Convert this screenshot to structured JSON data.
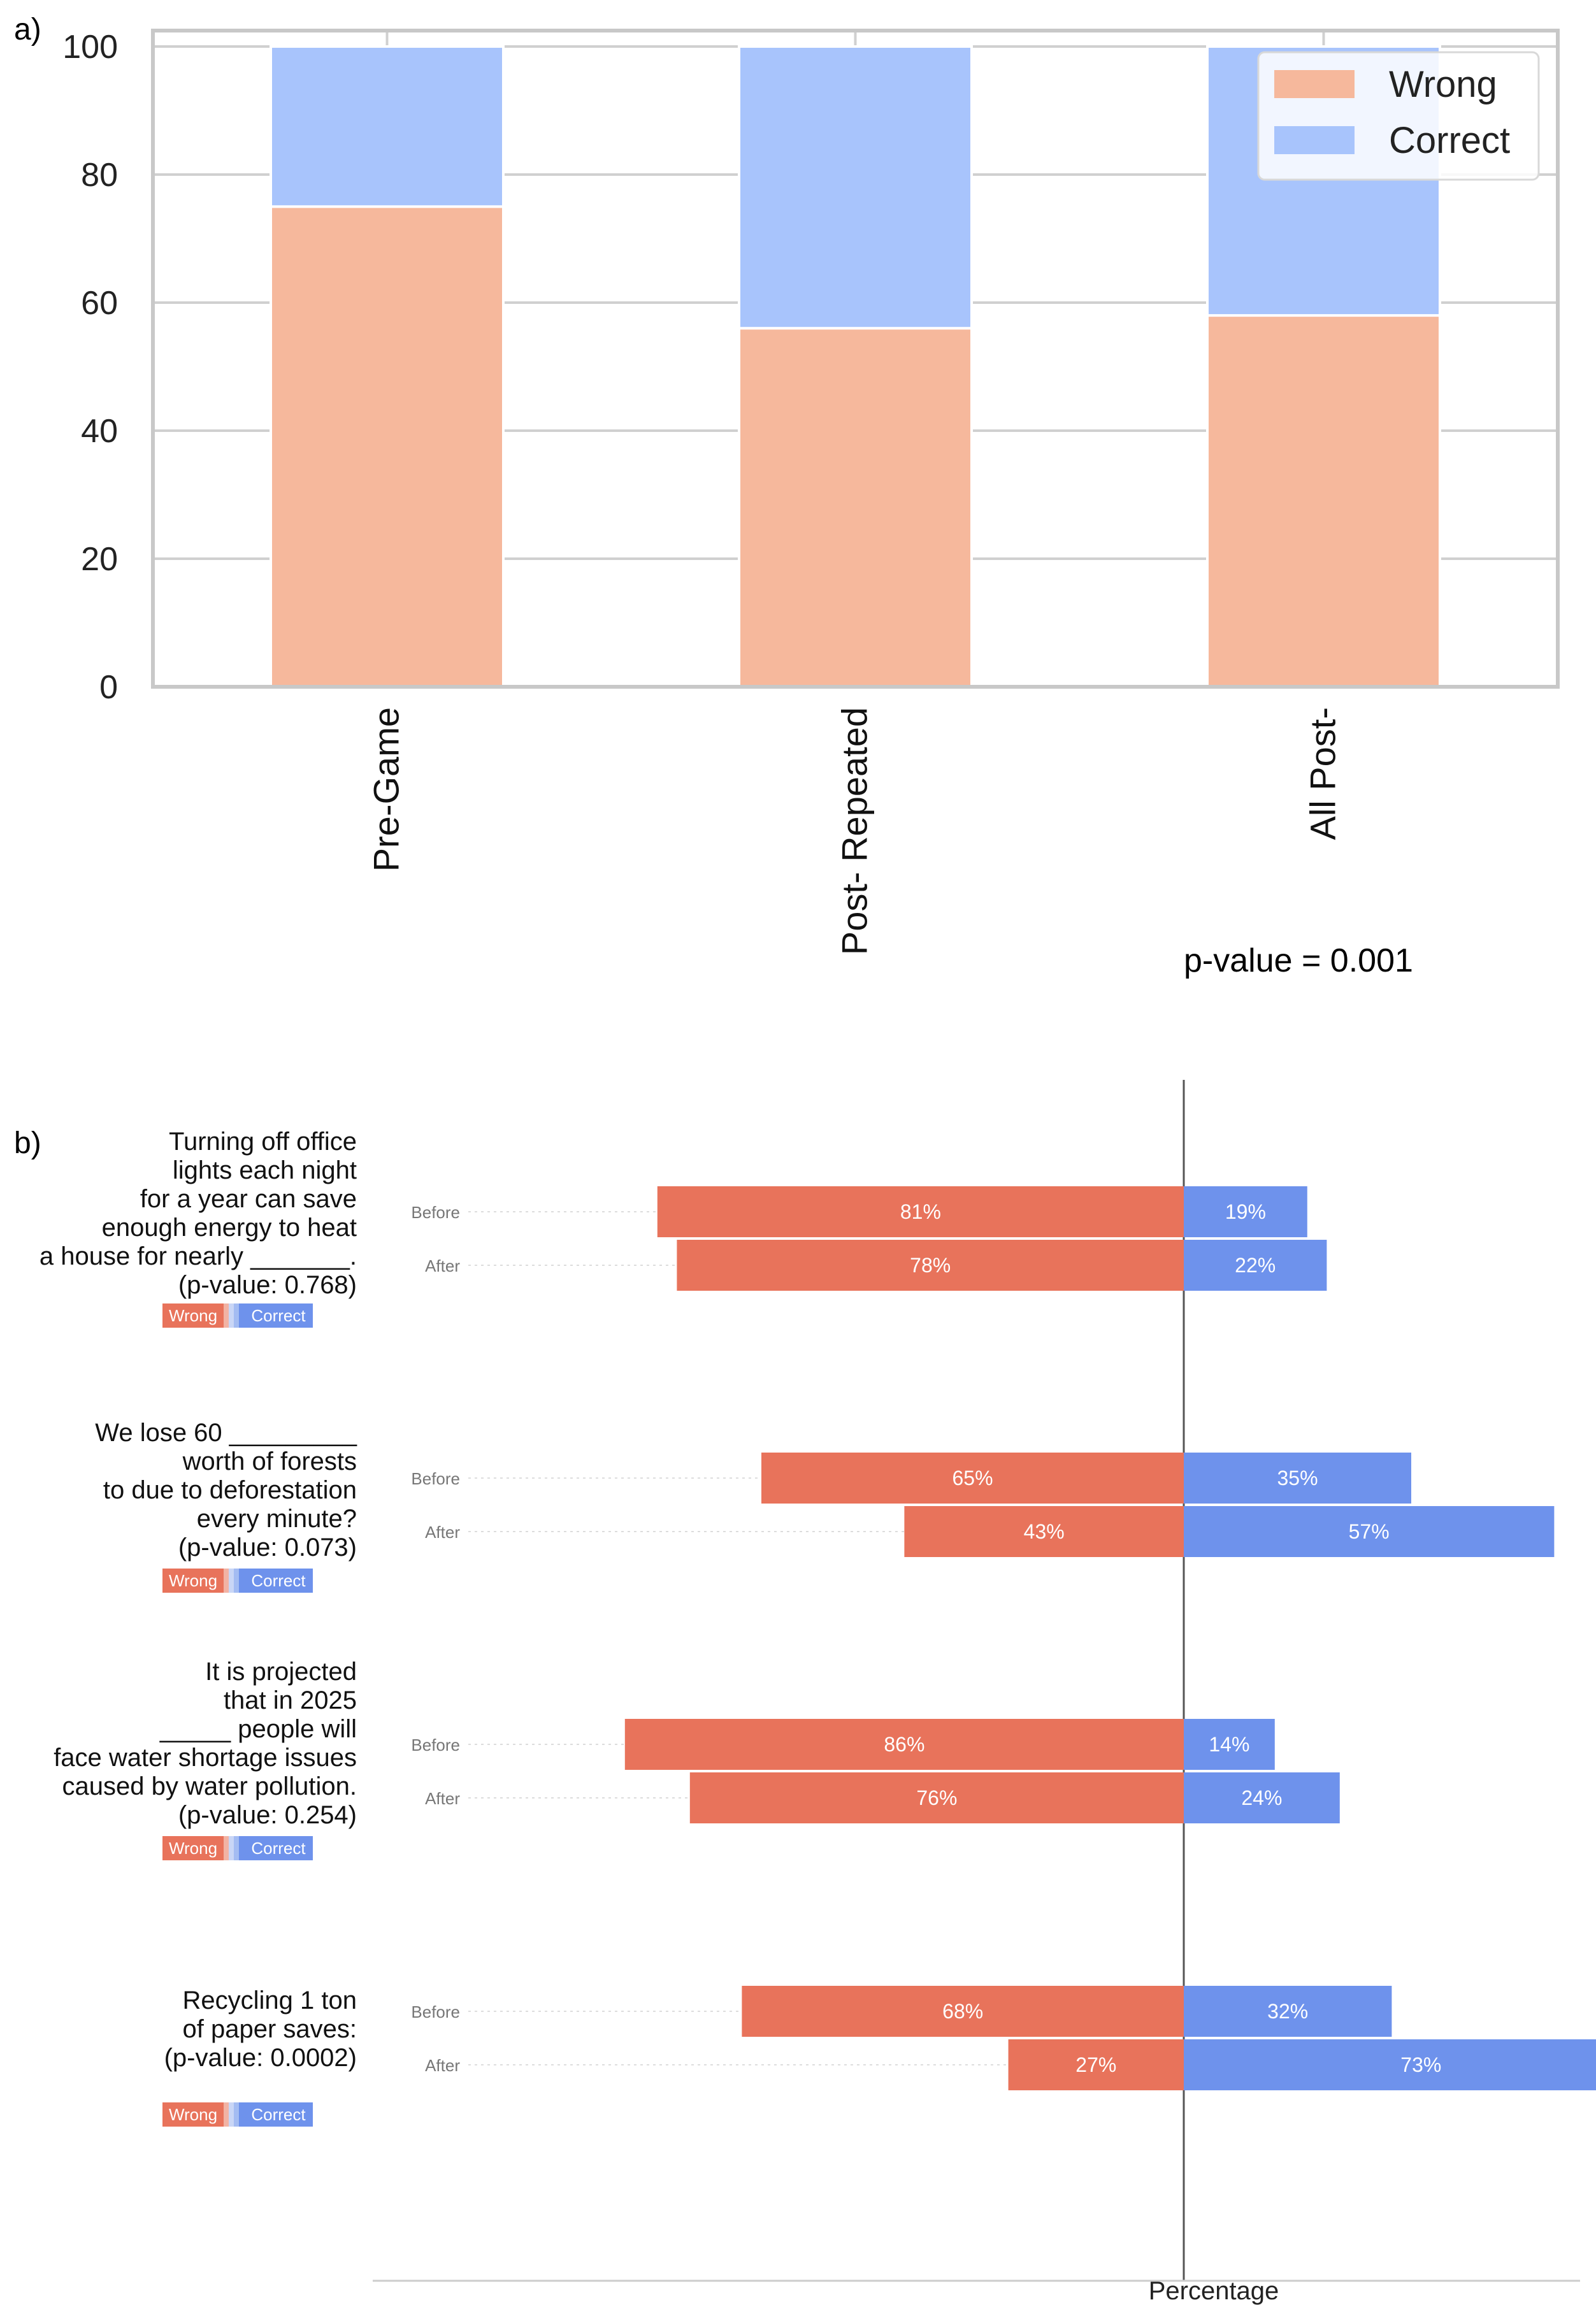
{
  "panel_labels": {
    "a": "a)",
    "b": "b)"
  },
  "colors": {
    "a_wrong": "#F6B89C",
    "a_correct": "#A8C4FC",
    "b_wrong": "#E8735B",
    "b_correct": "#6E92EC",
    "grid": "#D0D0D0",
    "frame": "#C8C8C8"
  },
  "p_value_text": "p-value = 0.001",
  "chart_data": [
    {
      "type": "bar",
      "stacked": true,
      "title": "",
      "xlabel": "",
      "ylabel": "",
      "ylim": [
        0,
        100
      ],
      "yticks": [
        0,
        20,
        40,
        60,
        80,
        100
      ],
      "grid": true,
      "categories": [
        "Pre-Game",
        "Post- Repeated",
        "All Post-"
      ],
      "series": [
        {
          "name": "Wrong",
          "values": [
            75,
            56,
            58
          ]
        },
        {
          "name": "Correct",
          "values": [
            25,
            44,
            42
          ]
        }
      ],
      "legend": {
        "position": "top-right",
        "entries": [
          "Wrong",
          "Correct"
        ]
      }
    },
    {
      "type": "bar",
      "orientation": "horizontal-diverging",
      "xlabel": "Percentage",
      "row_labels": [
        "Before",
        "After"
      ],
      "legend_entries": [
        "Wrong",
        "Correct"
      ],
      "questions": [
        {
          "lines": [
            "Turning off office",
            "lights each night",
            "for a year can save",
            "enough energy to heat",
            "a house for nearly _______.",
            "(p-value: 0.768)"
          ],
          "before": {
            "wrong": 81,
            "correct": 19
          },
          "after": {
            "wrong": 78,
            "correct": 22
          }
        },
        {
          "lines": [
            "We lose 60 _________",
            "worth of forests",
            "to due to deforestation",
            "every minute?",
            "(p-value: 0.073)"
          ],
          "before": {
            "wrong": 65,
            "correct": 35
          },
          "after": {
            "wrong": 43,
            "correct": 57
          }
        },
        {
          "lines": [
            "It is projected",
            "that in 2025",
            "_____ people will",
            "face water shortage issues",
            "caused by water pollution.",
            "(p-value: 0.254)"
          ],
          "before": {
            "wrong": 86,
            "correct": 14
          },
          "after": {
            "wrong": 76,
            "correct": 24
          }
        },
        {
          "lines": [
            "Recycling 1 ton",
            "of paper saves:",
            "(p-value: 0.0002)"
          ],
          "before": {
            "wrong": 68,
            "correct": 32
          },
          "after": {
            "wrong": 27,
            "correct": 73
          }
        }
      ]
    }
  ]
}
